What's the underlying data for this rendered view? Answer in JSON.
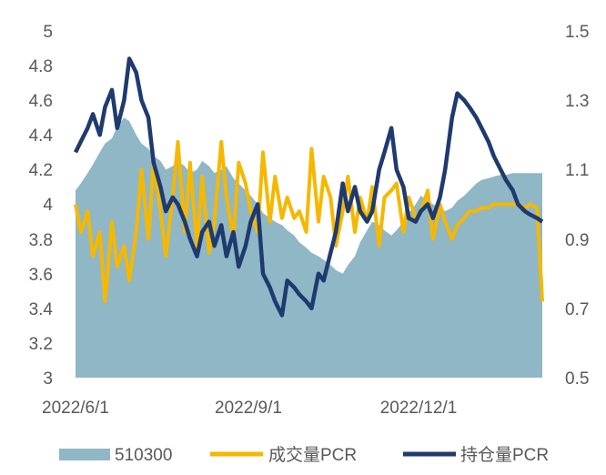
{
  "chart_data": {
    "type": "area+line",
    "title": "",
    "xlabel": "",
    "x_tick_labels": [
      "2022/6/1",
      "2022/9/1",
      "2022/12/1"
    ],
    "y_left": {
      "ticks": [
        "3",
        "3.2",
        "3.4",
        "3.6",
        "3.8",
        "4",
        "4.2",
        "4.4",
        "4.6",
        "4.8",
        "5"
      ],
      "ylim": [
        3,
        5
      ]
    },
    "y_right": {
      "ticks": [
        "0.5",
        "0.7",
        "0.9",
        "1.1",
        "1.3",
        "1.5"
      ],
      "ylim": [
        0.5,
        1.5
      ]
    },
    "legend": {
      "placement": "bottom",
      "labels": [
        "510300",
        "成交量PCR",
        "持仓量PCR"
      ]
    },
    "colors": {
      "area": "#8fb7c6",
      "volume_pcr": "#f5b800",
      "oi_pcr": "#1f3a6e",
      "tick_text": "#595959"
    },
    "series": [
      {
        "name": "510300",
        "axis": "left",
        "type": "area",
        "x": [
          "2022/5/23",
          "2022/5/26",
          "2022/5/30",
          "2022/6/2",
          "2022/6/6",
          "2022/6/9",
          "2022/6/13",
          "2022/6/16",
          "2022/6/20",
          "2022/6/23",
          "2022/6/27",
          "2022/6/30",
          "2022/7/4",
          "2022/7/7",
          "2022/7/11",
          "2022/7/14",
          "2022/7/18",
          "2022/7/21",
          "2022/7/25",
          "2022/7/28",
          "2022/8/1",
          "2022/8/4",
          "2022/8/8",
          "2022/8/11",
          "2022/8/15",
          "2022/8/18",
          "2022/8/22",
          "2022/8/25",
          "2022/8/29",
          "2022/9/1",
          "2022/9/5",
          "2022/9/8",
          "2022/9/12",
          "2022/9/15",
          "2022/9/19",
          "2022/9/22",
          "2022/9/26",
          "2022/9/29",
          "2022/10/3",
          "2022/10/6",
          "2022/10/10",
          "2022/10/13",
          "2022/10/17",
          "2022/10/20",
          "2022/10/24",
          "2022/10/27",
          "2022/10/31",
          "2022/11/3",
          "2022/11/7",
          "2022/11/10",
          "2022/11/14",
          "2022/11/17",
          "2022/11/21",
          "2022/11/24",
          "2022/11/28",
          "2022/12/1",
          "2022/12/5",
          "2022/12/8",
          "2022/12/12",
          "2022/12/15",
          "2022/12/19",
          "2022/12/22",
          "2022/12/26",
          "2022/12/29",
          "2023/1/2",
          "2023/1/5",
          "2023/1/9",
          "2023/1/12",
          "2023/1/16",
          "2023/1/19",
          "2023/1/23",
          "2023/1/26",
          "2023/1/30",
          "2023/2/2",
          "2023/2/6",
          "2023/2/9",
          "2023/2/13",
          "2023/2/16"
        ],
        "values": [
          4.08,
          4.12,
          4.18,
          4.23,
          4.3,
          4.35,
          4.38,
          4.45,
          4.5,
          4.48,
          4.4,
          4.35,
          4.32,
          4.28,
          4.25,
          4.2,
          4.22,
          4.25,
          4.22,
          4.18,
          4.2,
          4.25,
          4.22,
          4.18,
          4.2,
          4.22,
          4.15,
          4.12,
          4.08,
          4.05,
          4.0,
          3.95,
          3.92,
          3.9,
          3.88,
          3.85,
          3.82,
          3.78,
          3.75,
          3.72,
          3.7,
          3.68,
          3.65,
          3.62,
          3.6,
          3.65,
          3.7,
          3.78,
          3.85,
          3.9,
          3.88,
          3.85,
          3.82,
          3.85,
          3.9,
          3.95,
          4.0,
          4.05,
          4.02,
          4.0,
          3.98,
          3.96,
          3.98,
          4.02,
          4.05,
          4.08,
          4.12,
          4.14,
          4.15,
          4.16,
          4.17,
          4.17,
          4.18,
          4.18,
          4.18,
          4.18,
          4.18,
          4.18
        ]
      },
      {
        "name": "成交量PCR",
        "axis": "right",
        "type": "line",
        "x": [
          "2022/5/23",
          "2022/5/26",
          "2022/5/30",
          "2022/6/2",
          "2022/6/6",
          "2022/6/9",
          "2022/6/13",
          "2022/6/16",
          "2022/6/20",
          "2022/6/23",
          "2022/6/27",
          "2022/6/30",
          "2022/7/4",
          "2022/7/7",
          "2022/7/11",
          "2022/7/14",
          "2022/7/18",
          "2022/7/21",
          "2022/7/25",
          "2022/7/28",
          "2022/8/1",
          "2022/8/4",
          "2022/8/8",
          "2022/8/11",
          "2022/8/15",
          "2022/8/18",
          "2022/8/22",
          "2022/8/25",
          "2022/8/29",
          "2022/9/1",
          "2022/9/5",
          "2022/9/8",
          "2022/9/12",
          "2022/9/15",
          "2022/9/19",
          "2022/9/22",
          "2022/9/26",
          "2022/9/29",
          "2022/10/3",
          "2022/10/6",
          "2022/10/10",
          "2022/10/13",
          "2022/10/17",
          "2022/10/20",
          "2022/10/24",
          "2022/10/27",
          "2022/10/31",
          "2022/11/3",
          "2022/11/7",
          "2022/11/10",
          "2022/11/14",
          "2022/11/17",
          "2022/11/21",
          "2022/11/24",
          "2022/11/28",
          "2022/12/1",
          "2022/12/5",
          "2022/12/8",
          "2022/12/12",
          "2022/12/15",
          "2022/12/19",
          "2022/12/22",
          "2022/12/26",
          "2022/12/29",
          "2023/1/2",
          "2023/1/5",
          "2023/1/9",
          "2023/1/12",
          "2023/1/16",
          "2023/1/19",
          "2023/1/23",
          "2023/1/26",
          "2023/1/30",
          "2023/2/2",
          "2023/2/6",
          "2023/2/9",
          "2023/2/13",
          "2023/2/16"
        ],
        "values": [
          1.0,
          0.92,
          0.98,
          0.85,
          0.92,
          0.72,
          0.95,
          0.82,
          0.88,
          0.78,
          0.92,
          1.1,
          0.9,
          1.12,
          0.98,
          0.85,
          1.02,
          1.18,
          0.92,
          1.12,
          0.88,
          1.08,
          0.86,
          0.95,
          1.18,
          1.02,
          0.9,
          1.12,
          1.06,
          0.98,
          0.92,
          1.15,
          0.95,
          1.08,
          0.96,
          1.02,
          0.96,
          0.98,
          0.92,
          1.16,
          0.95,
          1.08,
          1.02,
          0.88,
          0.98,
          1.08,
          0.92,
          1.02,
          0.95,
          1.05,
          0.88,
          1.02,
          1.04,
          1.06,
          0.92,
          1.02,
          0.96,
          0.98,
          1.04,
          0.9,
          1.0,
          0.95,
          0.9,
          0.94,
          0.96,
          0.98,
          0.98,
          0.99,
          0.99,
          1.0,
          1.0,
          1.0,
          1.0,
          1.0,
          0.99,
          1.0,
          0.99,
          0.72
        ]
      },
      {
        "name": "持仓量PCR",
        "axis": "right",
        "type": "line",
        "x": [
          "2022/5/23",
          "2022/5/26",
          "2022/5/30",
          "2022/6/2",
          "2022/6/6",
          "2022/6/9",
          "2022/6/13",
          "2022/6/16",
          "2022/6/20",
          "2022/6/23",
          "2022/6/27",
          "2022/6/30",
          "2022/7/4",
          "2022/7/7",
          "2022/7/11",
          "2022/7/14",
          "2022/7/18",
          "2022/7/21",
          "2022/7/25",
          "2022/7/28",
          "2022/8/1",
          "2022/8/4",
          "2022/8/8",
          "2022/8/11",
          "2022/8/15",
          "2022/8/18",
          "2022/8/22",
          "2022/8/25",
          "2022/8/29",
          "2022/9/1",
          "2022/9/5",
          "2022/9/8",
          "2022/9/12",
          "2022/9/15",
          "2022/9/19",
          "2022/9/22",
          "2022/9/26",
          "2022/9/29",
          "2022/10/3",
          "2022/10/6",
          "2022/10/10",
          "2022/10/13",
          "2022/10/17",
          "2022/10/20",
          "2022/10/24",
          "2022/10/27",
          "2022/10/31",
          "2022/11/3",
          "2022/11/7",
          "2022/11/10",
          "2022/11/14",
          "2022/11/17",
          "2022/11/21",
          "2022/11/24",
          "2022/11/28",
          "2022/12/1",
          "2022/12/5",
          "2022/12/8",
          "2022/12/12",
          "2022/12/15",
          "2022/12/19",
          "2022/12/22",
          "2022/12/26",
          "2022/12/29",
          "2023/1/2",
          "2023/1/5",
          "2023/1/9",
          "2023/1/12",
          "2023/1/16",
          "2023/1/19",
          "2023/1/23",
          "2023/1/26",
          "2023/1/30",
          "2023/2/2",
          "2023/2/6",
          "2023/2/9",
          "2023/2/13",
          "2023/2/16"
        ],
        "values": [
          1.15,
          1.18,
          1.22,
          1.26,
          1.2,
          1.28,
          1.33,
          1.22,
          1.3,
          1.42,
          1.38,
          1.3,
          1.25,
          1.12,
          1.05,
          0.98,
          1.02,
          1.0,
          0.95,
          0.9,
          0.85,
          0.92,
          0.95,
          0.88,
          0.94,
          0.85,
          0.92,
          0.82,
          0.88,
          0.95,
          1.0,
          0.8,
          0.76,
          0.72,
          0.68,
          0.78,
          0.76,
          0.74,
          0.72,
          0.7,
          0.8,
          0.78,
          0.86,
          0.92,
          1.06,
          0.98,
          1.05,
          0.98,
          0.95,
          0.98,
          1.1,
          1.15,
          1.22,
          1.1,
          1.05,
          0.96,
          0.95,
          0.98,
          1.0,
          0.96,
          1.02,
          1.1,
          1.25,
          1.32,
          1.3,
          1.28,
          1.25,
          1.22,
          1.18,
          1.14,
          1.1,
          1.07,
          1.04,
          1.0,
          0.98,
          0.97,
          0.96,
          0.95
        ]
      }
    ]
  }
}
